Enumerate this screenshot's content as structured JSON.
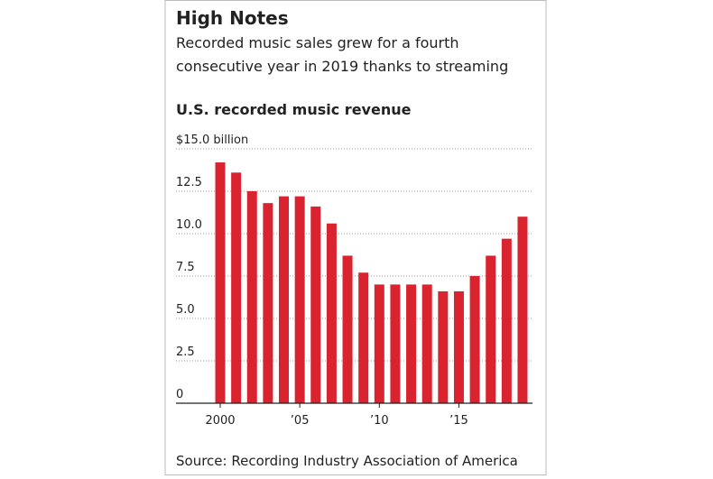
{
  "chart_data": {
    "type": "bar",
    "title": "High Notes",
    "subtitle": [
      "Recorded music sales grew for a fourth",
      "consecutive year in 2019 thanks to streaming"
    ],
    "chart_title": "U.S. recorded music revenue",
    "source": "Source: Recording Industry Association of America",
    "categories": [
      "2000",
      null,
      null,
      null,
      null,
      "’05",
      null,
      null,
      null,
      null,
      "’10",
      null,
      null,
      null,
      null,
      "’15",
      null,
      null,
      null,
      null
    ],
    "values": [
      14.2,
      13.6,
      12.5,
      11.8,
      12.2,
      12.2,
      11.6,
      10.6,
      8.7,
      7.7,
      7.0,
      7.0,
      7.0,
      7.0,
      6.6,
      6.6,
      7.5,
      8.7,
      9.7,
      11.0
    ],
    "color": "#d9232e",
    "ylim": [
      0,
      15
    ],
    "yticks": [
      0,
      2.5,
      {
        "value": 5,
        "label": "5.0"
      },
      7.5,
      {
        "value": 10,
        "label": "10.0"
      },
      12.5,
      {
        "value": 15,
        "label": "$15.0 billion"
      }
    ],
    "grid": true
  }
}
